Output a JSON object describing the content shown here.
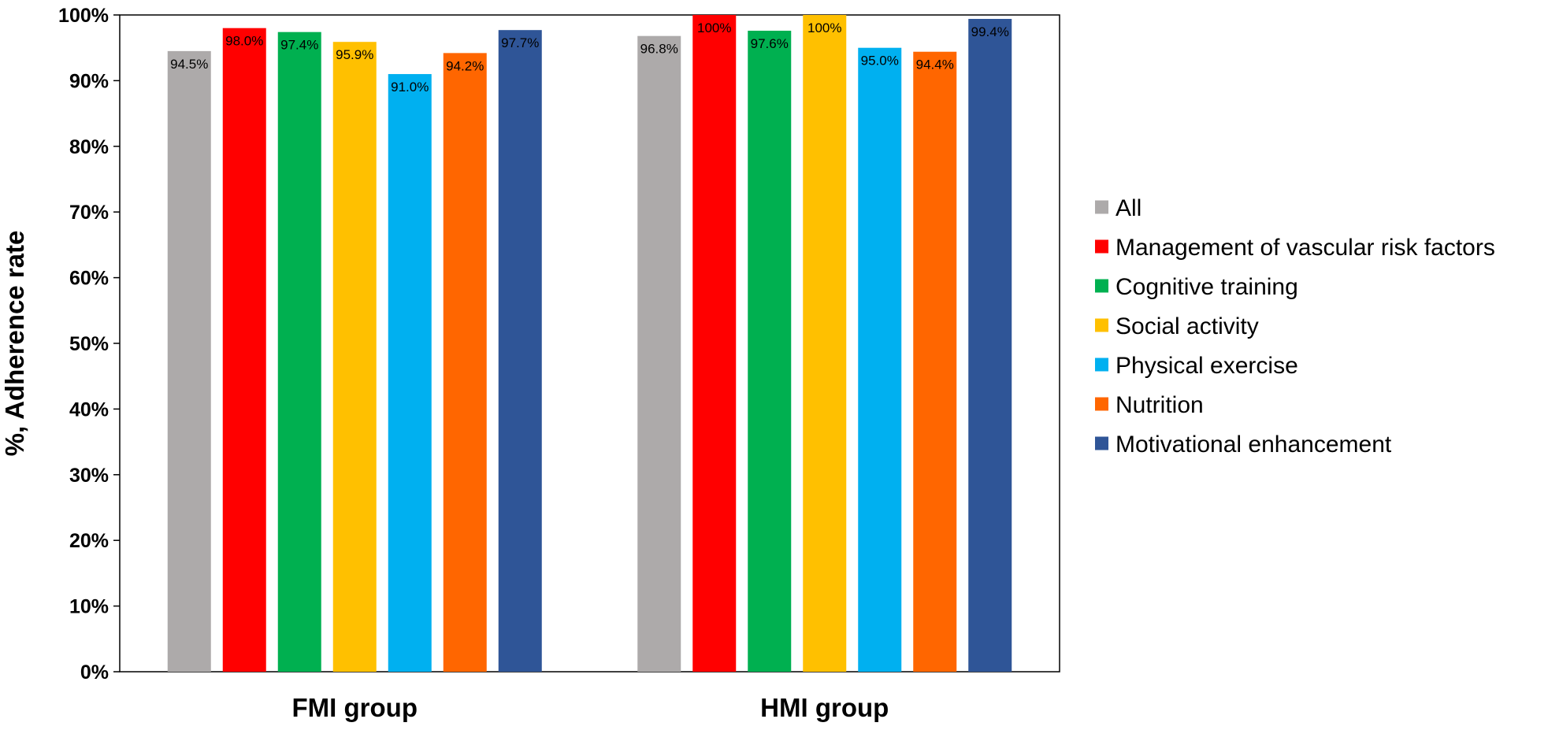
{
  "chart_data": {
    "type": "bar",
    "title": "",
    "xlabel": "",
    "ylabel": "%, Adherence rate",
    "ylim": [
      0,
      100
    ],
    "y_ticks": [
      "0%",
      "10%",
      "20%",
      "30%",
      "40%",
      "50%",
      "60%",
      "70%",
      "80%",
      "90%",
      "100%"
    ],
    "grid": false,
    "legend_position": "right",
    "categories": [
      "FMI group",
      "HMI group"
    ],
    "series": [
      {
        "name": "All",
        "color": "#ADAAAA",
        "values": [
          94.5,
          96.8
        ],
        "labels": [
          "94.5%",
          "96.8%"
        ]
      },
      {
        "name": "Management of vascular risk factors",
        "color": "#FF0000",
        "values": [
          98.0,
          100
        ],
        "labels": [
          "98.0%",
          "100%"
        ]
      },
      {
        "name": "Cognitive training",
        "color": "#00B050",
        "values": [
          97.4,
          97.6
        ],
        "labels": [
          "97.4%",
          "97.6%"
        ]
      },
      {
        "name": "Social activity",
        "color": "#FFC000",
        "values": [
          95.9,
          100
        ],
        "labels": [
          "95.9%",
          "100%"
        ]
      },
      {
        "name": "Physical exercise",
        "color": "#00B0F0",
        "values": [
          91.0,
          95.0
        ],
        "labels": [
          "91.0%",
          "95.0%"
        ]
      },
      {
        "name": "Nutrition",
        "color": "#FF6600",
        "values": [
          94.2,
          94.4
        ],
        "labels": [
          "94.2%",
          "94.4%"
        ]
      },
      {
        "name": "Motivational enhancement",
        "color": "#2F5597",
        "values": [
          97.7,
          99.4
        ],
        "labels": [
          "97.7%",
          "99.4%"
        ]
      }
    ]
  }
}
